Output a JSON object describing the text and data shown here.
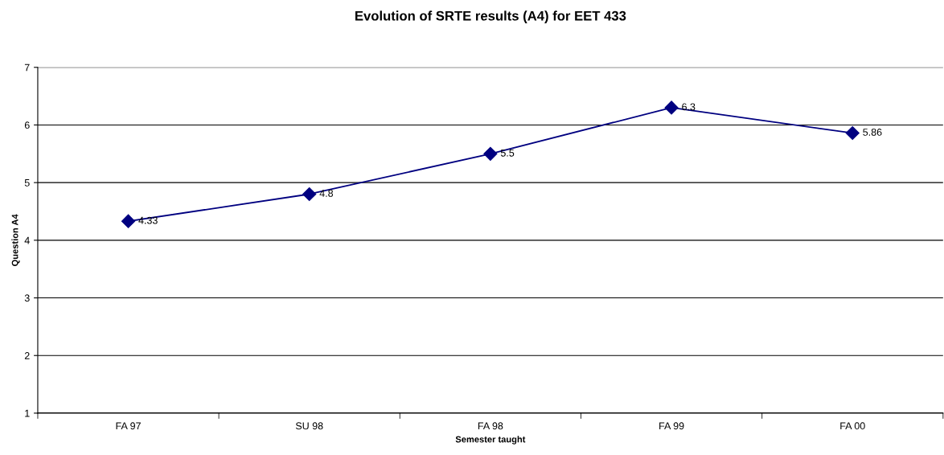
{
  "chart_data": {
    "type": "line",
    "title": "Evolution of SRTE results (A4) for EET 433",
    "xlabel": "Semester taught",
    "ylabel": "Question A4",
    "categories": [
      "FA 97",
      "SU 98",
      "FA 98",
      "FA 99",
      "FA 00"
    ],
    "series": [
      {
        "color": "#000080",
        "values": [
          4.33,
          4.8,
          5.5,
          6.3,
          5.86
        ]
      }
    ],
    "ylim": [
      1,
      7
    ],
    "yticks": [
      1,
      2,
      3,
      4,
      5,
      6,
      7
    ],
    "grid": "y",
    "marker": "diamond",
    "line_style": "solid",
    "data_labels": true
  }
}
